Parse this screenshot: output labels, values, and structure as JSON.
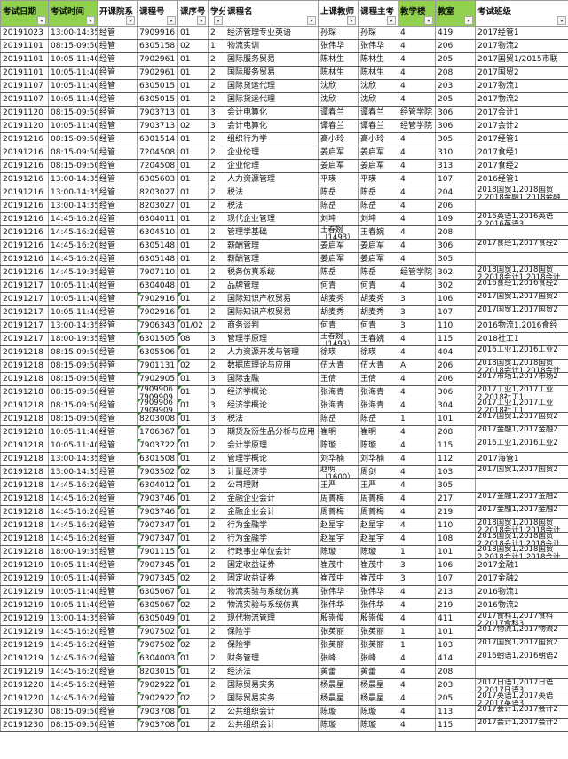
{
  "header_color": "#92d050",
  "columns": [
    {
      "label": "考试日期",
      "green": true
    },
    {
      "label": "考试时间",
      "green": true
    },
    {
      "label": "开课院系",
      "green": false
    },
    {
      "label": "课程号",
      "green": false
    },
    {
      "label": "课序号",
      "green": false
    },
    {
      "label": "学分",
      "green": false
    },
    {
      "label": "课程名",
      "green": false
    },
    {
      "label": "上课教师",
      "green": false
    },
    {
      "label": "课程主考",
      "green": false
    },
    {
      "label": "教学楼",
      "green": true
    },
    {
      "label": "教室",
      "green": true
    },
    {
      "label": "考试班级",
      "green": false
    }
  ],
  "rows": [
    {
      "cells": [
        "20191023",
        "13:00-14:35",
        "经管",
        "7909916",
        "01",
        "2",
        "经济管理专业英语",
        "孙琛",
        "孙琛",
        "4",
        "419",
        "2017经管1"
      ]
    },
    {
      "cells": [
        "20191101",
        "08:15-09:50",
        "经管",
        "6305158",
        "02",
        "1",
        "物流实训",
        "张伟华",
        "张伟华",
        "4",
        "206",
        "2017物流2"
      ]
    },
    {
      "cells": [
        "20191101",
        "10:05-11:40",
        "经管",
        "7902961",
        "01",
        "2",
        "国际服务贸易",
        "陈林生",
        "陈林生",
        "4",
        "205",
        "2017国贸1/2015市联"
      ]
    },
    {
      "cells": [
        "20191101",
        "10:05-11:40",
        "经管",
        "7902961",
        "01",
        "2",
        "国际服务贸易",
        "陈林生",
        "陈林生",
        "4",
        "208",
        "2017国贸2"
      ]
    },
    {
      "cells": [
        "20191107",
        "10:05-11:40",
        "经管",
        "6305015",
        "01",
        "2",
        "国际货运代理",
        "沈欣",
        "沈欣",
        "4",
        "203",
        "2017物流1"
      ]
    },
    {
      "cells": [
        "20191107",
        "10:05-11:40",
        "经管",
        "6305015",
        "01",
        "2",
        "国际货运代理",
        "沈欣",
        "沈欣",
        "4",
        "205",
        "2017物流2"
      ]
    },
    {
      "cells": [
        "20191120",
        "08:15-09:50",
        "经管",
        "7903713",
        "01",
        "3",
        "会计电算化",
        "谭春兰",
        "谭春兰",
        "经管学院",
        "306",
        "2017会计1"
      ]
    },
    {
      "cells": [
        "20191120",
        "10:05-11:40",
        "经管",
        "7903713",
        "02",
        "3",
        "会计电算化",
        "谭春兰",
        "谭春兰",
        "经管学院",
        "306",
        "2017会计2"
      ]
    },
    {
      "cells": [
        "20191216",
        "08:15-09:50",
        "经管",
        "6301514",
        "01",
        "2",
        "组织行为学",
        "高小玲",
        "高小玲",
        "4",
        "305",
        "2017经管1"
      ]
    },
    {
      "cells": [
        "20191216",
        "08:15-09:50",
        "经管",
        "7204508",
        "01",
        "2",
        "企业伦理",
        "姜启军",
        "姜启军",
        "4",
        "310",
        "2017食经1"
      ]
    },
    {
      "cells": [
        "20191216",
        "08:15-09:50",
        "经管",
        "7204508",
        "01",
        "2",
        "企业伦理",
        "姜启军",
        "姜启军",
        "4",
        "313",
        "2017食经2"
      ]
    },
    {
      "cells": [
        "20191216",
        "13:00-14:35",
        "经管",
        "6305603",
        "01",
        "2",
        "人力资源管理",
        "平瑛",
        "平瑛",
        "4",
        "107",
        "2016经管1"
      ]
    },
    {
      "cells": [
        "20191216",
        "13:00-14:35",
        "经管",
        "8203027",
        "01",
        "2",
        "税法",
        "陈岳",
        "陈岳",
        "4",
        "204",
        "2018国贸1,2018国贸2,2018金融1,2018金融"
      ]
    },
    {
      "cells": [
        "20191216",
        "13:00-14:35",
        "经管",
        "8203027",
        "01",
        "2",
        "税法",
        "陈岳",
        "陈岳",
        "4",
        "206",
        ""
      ]
    },
    {
      "cells": [
        "20191216",
        "14:45-16:20",
        "经管",
        "6304011",
        "01",
        "2",
        "现代企业管理",
        "刘坤",
        "刘坤",
        "4",
        "109",
        "2016英语1,2016英语2,2016英语3"
      ]
    },
    {
      "cells": [
        "20191216",
        "14:45-16:20",
        "经管",
        "6304510",
        "01",
        "2",
        "管理学基础",
        "王春婉（1493）",
        "王春婉",
        "4",
        "208",
        ""
      ]
    },
    {
      "cells": [
        "20191216",
        "14:45-16:20",
        "经管",
        "6305148",
        "01",
        "2",
        "薪酬管理",
        "姜启军",
        "姜启军",
        "4",
        "306",
        "2017食经1,2017食经2"
      ]
    },
    {
      "cells": [
        "20191216",
        "14:45-16:20",
        "经管",
        "6305148",
        "01",
        "2",
        "薪酬管理",
        "姜启军",
        "姜启军",
        "4",
        "305",
        ""
      ]
    },
    {
      "cells": [
        "20191216",
        "14:45-19:35",
        "经管",
        "7907110",
        "01",
        "2",
        "税务仿真系统",
        "陈岳",
        "陈岳",
        "经管学院",
        "302",
        "2018国贸1,2018国贸2,2018会计1,2018会计"
      ]
    },
    {
      "cells": [
        "20191217",
        "10:05-11:40",
        "经管",
        "6304048",
        "01",
        "2",
        "品牌管理",
        "何青",
        "何青",
        "4",
        "302",
        "2016食经1,2016食经2"
      ]
    },
    {
      "cells": [
        "20191217",
        "10:05-11:40",
        "经管",
        "7902916",
        "01",
        "2",
        "国际知识产权贸易",
        "胡麦秀",
        "胡麦秀",
        "3",
        "106",
        "2017国贸1,2017国贸2"
      ],
      "flag": true
    },
    {
      "cells": [
        "20191217",
        "10:05-11:40",
        "经管",
        "7902916",
        "01",
        "2",
        "国际知识产权贸易",
        "胡麦秀",
        "胡麦秀",
        "3",
        "107",
        "2017国贸1,2017国贸2"
      ],
      "flag": true
    },
    {
      "cells": [
        "20191217",
        "13:00-14:35",
        "经管",
        "7906343",
        "01/02",
        "2",
        "商务谈判",
        "何青",
        "何青",
        "3",
        "110",
        "2016物流1,2016食经"
      ],
      "flag": true
    },
    {
      "cells": [
        "20191217",
        "18:00-19:35",
        "经管",
        "6301505",
        "08",
        "3",
        "管理学原理",
        "王春婉（1493）",
        "王春婉",
        "4",
        "115",
        "2018社工1"
      ],
      "flag": true
    },
    {
      "cells": [
        "20191218",
        "08:15-09:50",
        "经管",
        "6305506",
        "01",
        "2",
        "人力资源开发与管理",
        "徐瑛",
        "徐瑛",
        "4",
        "404",
        "2016工业1,2016工业2"
      ],
      "flag": true
    },
    {
      "cells": [
        "20191218",
        "08:15-09:50",
        "经管",
        "7901131",
        "02",
        "2",
        "数据库理论与应用",
        "伍大青",
        "伍大青",
        "A",
        "206",
        "2018国贸1,2018国贸2,2018会计1,2018会计"
      ],
      "flag": true
    },
    {
      "cells": [
        "20191218",
        "08:15-09:50",
        "经管",
        "7902905",
        "01",
        "3",
        "国际金融",
        "王倩",
        "王倩",
        "4",
        "206",
        "2017市场1,2017市场2"
      ],
      "flag": true
    },
    {
      "cells": [
        "20191218",
        "08:15-09:50",
        "经管",
        "7909906 7909909",
        "01",
        "3",
        "经济学概论",
        "张海青",
        "张海青",
        "4",
        "306",
        "2017工业1,2017工业2,2018社工1"
      ],
      "flag": true
    },
    {
      "cells": [
        "20191218",
        "08:15-09:50",
        "经管",
        "7909906 7909909",
        "01",
        "3",
        "经济学概论",
        "张海青",
        "张海青",
        "4",
        "304",
        "2017工业1,2017工业2,2018社工1"
      ],
      "flag": true
    },
    {
      "cells": [
        "20191218",
        "08:15-09:50",
        "经管",
        "8203008",
        "01",
        "3",
        "税法",
        "陈岳",
        "陈岳",
        "1",
        "101",
        "2017国贸1,2017国贸2"
      ],
      "flag": true
    },
    {
      "cells": [
        "20191218",
        "10:05-11:40",
        "经管",
        "1706367",
        "01",
        "3",
        "期货及衍生品分析与应用",
        "崔明",
        "崔明",
        "4",
        "208",
        "2017金融1,2017金融2"
      ],
      "flag": true
    },
    {
      "cells": [
        "20191218",
        "10:05-11:40",
        "经管",
        "7903722",
        "01",
        "2",
        "会计学原理",
        "陈璇",
        "陈璇",
        "4",
        "115",
        "2016工业1,2016工业2"
      ],
      "flag": true
    },
    {
      "cells": [
        "20191218",
        "13:00-14:35",
        "经管",
        "6301508",
        "01",
        "2",
        "管理学概论",
        "刘华楠",
        "刘华楠",
        "4",
        "112",
        "2017海管1"
      ],
      "flag": true
    },
    {
      "cells": [
        "20191218",
        "13:00-14:35",
        "经管",
        "7903502",
        "02",
        "3",
        "计量经济学",
        "赵明（1600）",
        "周剑",
        "4",
        "103",
        "2017国贸1,2017国贸2"
      ],
      "flag": true
    },
    {
      "cells": [
        "20191218",
        "14:45-16:20",
        "经管",
        "6304012",
        "01",
        "2",
        "公司理财",
        "王严",
        "王严",
        "4",
        "305",
        ""
      ],
      "flag": true
    },
    {
      "cells": [
        "20191218",
        "14:45-16:20",
        "经管",
        "7903746",
        "01",
        "2",
        "金融企业会计",
        "周菁梅",
        "周菁梅",
        "4",
        "217",
        "2017金融1,2017金融2"
      ],
      "flag": true
    },
    {
      "cells": [
        "20191218",
        "14:45-16:20",
        "经管",
        "7903746",
        "01",
        "2",
        "金融企业会计",
        "周菁梅",
        "周菁梅",
        "4",
        "219",
        "2017金融1,2017金融2"
      ],
      "flag": true
    },
    {
      "cells": [
        "20191218",
        "14:45-16:20",
        "经管",
        "7907347",
        "01",
        "2",
        "行为金融学",
        "赵星宇",
        "赵星宇",
        "4",
        "110",
        "2018国贸1,2018国贸2,2018会计1,2018会计"
      ],
      "flag": true
    },
    {
      "cells": [
        "20191218",
        "14:45-16:20",
        "经管",
        "7907347",
        "01",
        "2",
        "行为金融学",
        "赵星宇",
        "赵星宇",
        "4",
        "108",
        "2018国贸1,2018国贸2,2018会计1,2018会计"
      ],
      "flag": true
    },
    {
      "cells": [
        "20191218",
        "18:00-19:35",
        "经管",
        "7901115",
        "01",
        "2",
        "行政事业单位会计",
        "陈璇",
        "陈璇",
        "1",
        "101",
        "2018国贸1,2018国贸2,2018会计1,2018会计"
      ],
      "flag": true
    },
    {
      "cells": [
        "20191219",
        "10:05-11:40",
        "经管",
        "7907345",
        "01",
        "2",
        "固定收益证券",
        "崔茂中",
        "崔茂中",
        "3",
        "106",
        "2017金融1"
      ],
      "flag": true
    },
    {
      "cells": [
        "20191219",
        "10:05-11:40",
        "经管",
        "7907345",
        "02",
        "2",
        "固定收益证券",
        "崔茂中",
        "崔茂中",
        "3",
        "107",
        "2017金融2"
      ],
      "flag": true
    },
    {
      "cells": [
        "20191219",
        "10:05-11:40",
        "经管",
        "6305067",
        "01",
        "2",
        "物流实验与系统仿真",
        "张伟华",
        "张伟华",
        "4",
        "213",
        "2016物流1"
      ],
      "flag": true
    },
    {
      "cells": [
        "20191219",
        "10:05-11:40",
        "经管",
        "6305067",
        "02",
        "2",
        "物流实验与系统仿真",
        "张伟华",
        "张伟华",
        "4",
        "219",
        "2016物流2"
      ],
      "flag": true
    },
    {
      "cells": [
        "20191219",
        "13:00-14:35",
        "经管",
        "6305049",
        "01",
        "2",
        "现代物流管理",
        "殷崇俊",
        "殷崇俊",
        "4",
        "411",
        "2017食科1,2017食科2,2017食科3"
      ],
      "flag": true
    },
    {
      "cells": [
        "20191219",
        "14:45-16:20",
        "经管",
        "7907502",
        "01",
        "2",
        "保险学",
        "张英丽",
        "张英丽",
        "1",
        "101",
        "2017物流1,2017物流2"
      ],
      "flag": true
    },
    {
      "cells": [
        "20191219",
        "14:45-16:20",
        "经管",
        "7907502",
        "02",
        "2",
        "保险学",
        "张英丽",
        "张英丽",
        "1",
        "103",
        "2017国贸1,2017国贸2"
      ],
      "flag": true
    },
    {
      "cells": [
        "20191219",
        "14:45-16:20",
        "经管",
        "6304003",
        "01",
        "2",
        "财务管理",
        "张峰",
        "张峰",
        "4",
        "414",
        "2016朝语1,2016朝语2"
      ],
      "flag": true
    },
    {
      "cells": [
        "20191219",
        "14:45-16:20",
        "经管",
        "8203015",
        "01",
        "2",
        "经济法",
        "黄蕾",
        "黄蕾",
        "4",
        "208",
        ""
      ],
      "flag": true
    },
    {
      "cells": [
        "20191220",
        "14:45-16:20",
        "经管",
        "7902922",
        "01",
        "2",
        "国际贸易实务",
        "杨晨星",
        "杨晨星",
        "4",
        "203",
        "2017日语1,2017日语2,2017日语3"
      ],
      "flag": true
    },
    {
      "cells": [
        "20191220",
        "14:45-16:20",
        "经管",
        "7902922",
        "02",
        "2",
        "国际贸易实务",
        "杨晨星",
        "杨晨星",
        "4",
        "205",
        "2017英语1,2017英语2,2017英语3"
      ],
      "flag": true
    },
    {
      "cells": [
        "20191230",
        "08:15-09:50",
        "经管",
        "7903708",
        "01",
        "2",
        "公共组织会计",
        "陈璇",
        "陈璇",
        "4",
        "113",
        "2017会计1,2017会计2"
      ],
      "flag": true
    },
    {
      "cells": [
        "20191230",
        "08:15-09:50",
        "经管",
        "7903708",
        "01",
        "2",
        "公共组织会计",
        "陈璇",
        "陈璇",
        "4",
        "115",
        "2017会计1,2017会计2"
      ],
      "flag": true
    }
  ]
}
